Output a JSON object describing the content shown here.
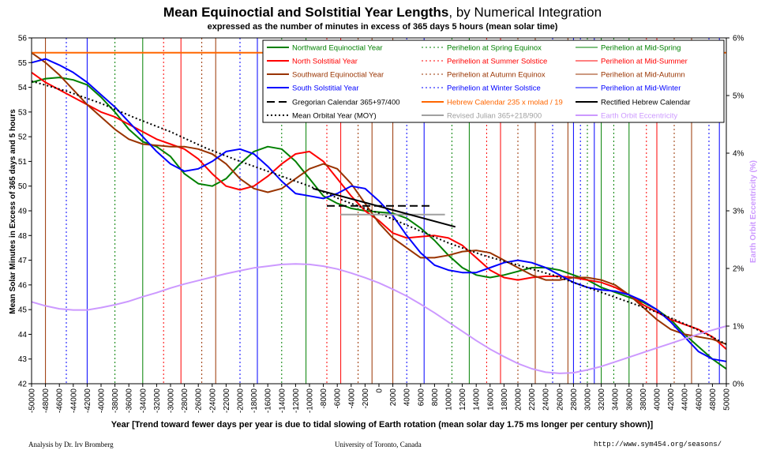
{
  "header": {
    "title_bold": "Mean Equinoctial and Solstitial Year Lengths",
    "title_rest": ", by Numerical Integration",
    "subtitle": "expressed as the number of minutes in excess of 365 days 5 hours (mean solar time)"
  },
  "footer": {
    "left": "Analysis by Dr. Irv Bromberg",
    "middle": "University of Toronto, Canada",
    "right": "http://www.sym454.org/seasons/"
  },
  "colors": {
    "green": "#008000",
    "red": "#ff0000",
    "brown": "#993300",
    "blue": "#0000ff",
    "black": "#000000",
    "orange": "#ff6600",
    "gray": "#a0a0a0",
    "violet": "#cc99ff"
  },
  "chart_data": {
    "type": "line",
    "xlabel": "Year [Trend toward fewer days per year is due to tidal slowing of Earth rotation (mean solar day 1.75 ms longer per century shown)]",
    "ylabel": "Mean Solar Minutes in Excess of 365 days and 5 hours",
    "y2label": "Earth Orbit Eccentricity (%)",
    "xlim": [
      -50000,
      50000
    ],
    "ylim": [
      42,
      56
    ],
    "y2lim": [
      0,
      6
    ],
    "x_ticks": [
      -50000,
      -48000,
      -46000,
      -44000,
      -42000,
      -40000,
      -38000,
      -36000,
      -34000,
      -32000,
      -30000,
      -28000,
      -26000,
      -24000,
      -22000,
      -20000,
      -18000,
      -16000,
      -14000,
      -12000,
      -10000,
      -8000,
      -6000,
      -4000,
      -2000,
      0,
      2000,
      4000,
      6000,
      8000,
      10000,
      12000,
      14000,
      16000,
      18000,
      20000,
      22000,
      24000,
      26000,
      28000,
      30000,
      32000,
      34000,
      36000,
      38000,
      40000,
      42000,
      44000,
      46000,
      48000,
      50000
    ],
    "y_ticks": [
      42,
      43,
      44,
      45,
      46,
      47,
      48,
      49,
      50,
      51,
      52,
      53,
      54,
      55,
      56
    ],
    "y2_ticks": [
      "0%",
      "1%",
      "2%",
      "3%",
      "4%",
      "5%",
      "6%"
    ],
    "grid": false,
    "legend_position": "top-right",
    "legend": [
      {
        "label": "Northward Equinoctial Year",
        "color": "green",
        "style": "solid",
        "width": 2
      },
      {
        "label": "Perihelion at Spring Equinox",
        "color": "green",
        "style": "dotted",
        "width": 1
      },
      {
        "label": "Perihelion at Mid-Spring",
        "color": "green",
        "style": "solid",
        "width": 1
      },
      {
        "label": "North Solstitial Year",
        "color": "red",
        "style": "solid",
        "width": 2
      },
      {
        "label": "Perihelion at Summer Solstice",
        "color": "red",
        "style": "dotted",
        "width": 1
      },
      {
        "label": "Perihelion at Mid-Summer",
        "color": "red",
        "style": "solid",
        "width": 1
      },
      {
        "label": "Southward Equinoctial Year",
        "color": "brown",
        "style": "solid",
        "width": 2
      },
      {
        "label": "Perihelion at Autumn Equinox",
        "color": "brown",
        "style": "dotted",
        "width": 1
      },
      {
        "label": "Perihelion at Mid-Autumn",
        "color": "brown",
        "style": "solid",
        "width": 1
      },
      {
        "label": "South Solstitial Year",
        "color": "blue",
        "style": "solid",
        "width": 2
      },
      {
        "label": "Perihelion at Winter Solstice",
        "color": "blue",
        "style": "dotted",
        "width": 1
      },
      {
        "label": "Perihelion at Mid-Winter",
        "color": "blue",
        "style": "solid",
        "width": 1
      },
      {
        "label": "Gregorian Calendar 365+97/400",
        "color": "black",
        "style": "dashed",
        "width": 2
      },
      {
        "label": "Hebrew Calendar 235 x molad / 19",
        "color": "orange",
        "style": "solid",
        "width": 2
      },
      {
        "label": "Rectified Hebrew Calendar",
        "color": "black",
        "style": "solid",
        "width": 2
      },
      {
        "label": "Mean Orbital Year (MOY)",
        "color": "black",
        "style": "dotted",
        "width": 2
      },
      {
        "label": "Revised Julian 365+218/900",
        "color": "gray",
        "style": "solid",
        "width": 2
      },
      {
        "label": "Earth Orbit Eccentricity",
        "color": "violet",
        "style": "solid",
        "width": 2
      }
    ],
    "perihelion_markers": [
      {
        "series": "Perihelion at Mid-Autumn",
        "color": "brown",
        "style": "solid",
        "x": [
          -48000,
          -23500,
          2000,
          27200
        ]
      },
      {
        "series": "Perihelion at Winter Solstice",
        "color": "blue",
        "style": "dotted",
        "x": [
          -45000,
          -20000,
          4000,
          29000
        ]
      },
      {
        "series": "Perihelion at Mid-Winter",
        "color": "blue",
        "style": "solid",
        "x": [
          -42000,
          -17500,
          6500,
          31000
        ]
      },
      {
        "series": "Perihelion at Spring Equinox",
        "color": "green",
        "style": "dotted",
        "x": [
          -38000,
          -14000,
          10500,
          33800
        ]
      },
      {
        "series": "Perihelion at Mid-Spring",
        "color": "green",
        "style": "solid",
        "x": [
          -34000,
          -10500,
          13000,
          36000
        ]
      },
      {
        "series": "Perihelion at Summer Solstice",
        "color": "red",
        "style": "dotted",
        "x": [
          -31000,
          -7500,
          15500,
          38500
        ]
      },
      {
        "series": "Perihelion at Mid-Summer",
        "color": "red",
        "style": "solid",
        "x": [
          -28500,
          -5500,
          17500,
          40000
        ]
      },
      {
        "series": "Perihelion at Autumn Equinox",
        "color": "brown",
        "style": "dotted",
        "x": [
          -25500,
          -3000,
          20000,
          42500
        ]
      },
      {
        "series": "Perihelion at Mid-Autumn",
        "color": "brown",
        "style": "solid",
        "x": [
          -1000,
          22500,
          45000
        ]
      },
      {
        "series": "Perihelion at Winter Solstice",
        "color": "blue",
        "style": "dotted",
        "x": [
          25000,
          47500
        ]
      },
      {
        "series": "Perihelion at Mid-Winter",
        "color": "blue",
        "style": "solid",
        "x": [
          28000,
          49000
        ]
      },
      {
        "series": "Perihelion at Spring Equinox",
        "color": "green",
        "style": "dotted",
        "x": [
          30000
        ]
      },
      {
        "series": "Perihelion at Mid-Spring",
        "color": "green",
        "style": "solid",
        "x": [
          32000
        ]
      }
    ],
    "series": [
      {
        "name": "Northward Equinoctial Year",
        "color": "green",
        "style": "solid",
        "width": 2,
        "x": [
          -50000,
          -48000,
          -46000,
          -44000,
          -42000,
          -40000,
          -38000,
          -36000,
          -34000,
          -32000,
          -30000,
          -28000,
          -26000,
          -24000,
          -22000,
          -20000,
          -18000,
          -16000,
          -14000,
          -12000,
          -10000,
          -8000,
          -6000,
          -4000,
          -2000,
          0,
          2000,
          4000,
          6000,
          8000,
          10000,
          12000,
          14000,
          16000,
          18000,
          20000,
          22000,
          24000,
          26000,
          28000,
          30000,
          32000,
          34000,
          36000,
          38000,
          40000,
          42000,
          44000,
          46000,
          48000,
          50000
        ],
        "y": [
          54.2,
          54.35,
          54.4,
          54.3,
          54.1,
          53.6,
          53.0,
          52.3,
          51.8,
          51.6,
          51.2,
          50.5,
          50.1,
          50.0,
          50.3,
          50.9,
          51.4,
          51.6,
          51.5,
          51.0,
          50.3,
          49.6,
          49.3,
          49.1,
          49.0,
          48.95,
          48.9,
          48.7,
          48.3,
          47.8,
          47.2,
          46.7,
          46.4,
          46.3,
          46.4,
          46.55,
          46.7,
          46.7,
          46.6,
          46.4,
          46.2,
          45.9,
          45.7,
          45.5,
          45.3,
          45.0,
          44.6,
          44.0,
          43.5,
          43.0,
          42.6
        ]
      },
      {
        "name": "North Solstitial Year",
        "color": "red",
        "style": "solid",
        "width": 2,
        "x": [
          -50000,
          -48000,
          -46000,
          -44000,
          -42000,
          -40000,
          -38000,
          -36000,
          -34000,
          -32000,
          -30000,
          -28000,
          -26000,
          -24000,
          -22000,
          -20000,
          -18000,
          -16000,
          -14000,
          -12000,
          -10000,
          -8000,
          -6000,
          -4000,
          -2000,
          0,
          2000,
          4000,
          6000,
          8000,
          10000,
          12000,
          14000,
          16000,
          18000,
          20000,
          22000,
          24000,
          26000,
          28000,
          30000,
          32000,
          34000,
          36000,
          38000,
          40000,
          42000,
          44000,
          46000,
          48000,
          50000
        ],
        "y": [
          54.6,
          54.2,
          53.9,
          53.6,
          53.3,
          53.0,
          52.8,
          52.5,
          52.2,
          51.9,
          51.7,
          51.5,
          51.1,
          50.5,
          50.0,
          49.85,
          50.0,
          50.4,
          50.9,
          51.3,
          51.4,
          51.0,
          50.3,
          49.6,
          49.0,
          48.6,
          48.1,
          47.9,
          47.95,
          48.0,
          47.9,
          47.6,
          47.1,
          46.6,
          46.3,
          46.2,
          46.3,
          46.35,
          46.35,
          46.3,
          46.2,
          46.1,
          45.9,
          45.6,
          45.2,
          44.9,
          44.6,
          44.4,
          44.2,
          43.9,
          43.4
        ]
      },
      {
        "name": "Southward Equinoctial Year",
        "color": "brown",
        "style": "solid",
        "width": 2,
        "x": [
          -50000,
          -48000,
          -46000,
          -44000,
          -42000,
          -40000,
          -38000,
          -36000,
          -34000,
          -32000,
          -30000,
          -28000,
          -26000,
          -24000,
          -22000,
          -20000,
          -18000,
          -16000,
          -14000,
          -12000,
          -10000,
          -8000,
          -6000,
          -4000,
          -2000,
          0,
          2000,
          4000,
          6000,
          8000,
          10000,
          12000,
          14000,
          16000,
          18000,
          20000,
          22000,
          24000,
          26000,
          28000,
          30000,
          32000,
          34000,
          36000,
          38000,
          40000,
          42000,
          44000,
          46000,
          48000,
          50000
        ],
        "y": [
          55.4,
          55.0,
          54.5,
          53.9,
          53.3,
          52.8,
          52.3,
          51.9,
          51.7,
          51.65,
          51.6,
          51.6,
          51.5,
          51.3,
          50.9,
          50.3,
          49.9,
          49.75,
          49.9,
          50.3,
          50.7,
          50.9,
          50.7,
          50.1,
          49.3,
          48.5,
          47.9,
          47.5,
          47.1,
          47.1,
          47.2,
          47.35,
          47.4,
          47.3,
          47.0,
          46.7,
          46.4,
          46.2,
          46.2,
          46.3,
          46.3,
          46.2,
          46.0,
          45.6,
          45.1,
          44.6,
          44.2,
          44.0,
          43.9,
          43.8,
          43.6
        ]
      },
      {
        "name": "South Solstitial Year",
        "color": "blue",
        "style": "solid",
        "width": 2,
        "x": [
          -50000,
          -48000,
          -46000,
          -44000,
          -42000,
          -40000,
          -38000,
          -36000,
          -34000,
          -32000,
          -30000,
          -28000,
          -26000,
          -24000,
          -22000,
          -20000,
          -18000,
          -16000,
          -14000,
          -12000,
          -10000,
          -8000,
          -6000,
          -4000,
          -2000,
          0,
          2000,
          4000,
          6000,
          8000,
          10000,
          12000,
          14000,
          16000,
          18000,
          20000,
          22000,
          24000,
          26000,
          28000,
          30000,
          32000,
          34000,
          36000,
          38000,
          40000,
          42000,
          44000,
          46000,
          48000,
          50000
        ],
        "y": [
          55.0,
          55.15,
          54.9,
          54.6,
          54.2,
          53.7,
          53.2,
          52.6,
          52.0,
          51.4,
          50.9,
          50.6,
          50.7,
          51.0,
          51.4,
          51.5,
          51.3,
          50.8,
          50.2,
          49.7,
          49.6,
          49.5,
          49.7,
          50.0,
          49.9,
          49.4,
          48.8,
          48.0,
          47.3,
          46.8,
          46.6,
          46.5,
          46.5,
          46.7,
          46.9,
          47.0,
          46.9,
          46.7,
          46.4,
          46.1,
          45.9,
          45.8,
          45.75,
          45.6,
          45.35,
          45.0,
          44.5,
          43.9,
          43.3,
          43.0,
          42.9
        ]
      },
      {
        "name": "Mean Orbital Year (MOY)",
        "color": "black",
        "style": "dotted",
        "width": 2,
        "x": [
          -50000,
          -45000,
          -40000,
          -35000,
          -30000,
          -25000,
          -20000,
          -15000,
          -10000,
          -5000,
          0,
          5000,
          10000,
          15000,
          20000,
          25000,
          30000,
          35000,
          40000,
          45000,
          50000
        ],
        "y": [
          54.25,
          53.85,
          53.35,
          52.75,
          52.2,
          51.55,
          51.0,
          50.5,
          50.0,
          49.4,
          48.9,
          48.3,
          47.7,
          47.2,
          46.8,
          46.4,
          45.9,
          45.4,
          44.9,
          44.3,
          43.6
        ]
      },
      {
        "name": "Earth Orbit Eccentricity",
        "color": "violet",
        "style": "solid",
        "width": 2,
        "axis": "y2",
        "x": [
          -50000,
          -48000,
          -46000,
          -44000,
          -42000,
          -40000,
          -38000,
          -36000,
          -34000,
          -32000,
          -30000,
          -28000,
          -26000,
          -24000,
          -22000,
          -20000,
          -18000,
          -16000,
          -14000,
          -12000,
          -10000,
          -8000,
          -6000,
          -4000,
          -2000,
          0,
          2000,
          4000,
          6000,
          8000,
          10000,
          12000,
          14000,
          16000,
          18000,
          20000,
          22000,
          24000,
          26000,
          28000,
          30000,
          32000,
          34000,
          36000,
          38000,
          40000,
          42000,
          44000,
          46000,
          48000,
          50000
        ],
        "y": [
          1.42,
          1.35,
          1.3,
          1.28,
          1.28,
          1.32,
          1.37,
          1.43,
          1.51,
          1.58,
          1.66,
          1.73,
          1.79,
          1.85,
          1.91,
          1.96,
          2.01,
          2.04,
          2.07,
          2.08,
          2.07,
          2.04,
          1.99,
          1.92,
          1.84,
          1.75,
          1.64,
          1.52,
          1.38,
          1.23,
          1.07,
          0.91,
          0.75,
          0.6,
          0.47,
          0.35,
          0.26,
          0.2,
          0.18,
          0.19,
          0.24,
          0.3,
          0.38,
          0.46,
          0.54,
          0.62,
          0.7,
          0.78,
          0.86,
          0.93,
          1.0
        ]
      },
      {
        "name": "Hebrew Calendar 235 x molad / 19",
        "color": "orange",
        "style": "solid",
        "width": 2,
        "x": [
          -50000,
          50000
        ],
        "y": [
          55.4,
          55.4
        ]
      },
      {
        "name": "Gregorian Calendar 365+97/400",
        "color": "black",
        "style": "dashed",
        "width": 2,
        "x": [
          -7500,
          7500
        ],
        "y": [
          49.2,
          49.2
        ]
      },
      {
        "name": "Revised Julian 365+218/900",
        "color": "gray",
        "style": "solid",
        "width": 2,
        "x": [
          -5500,
          9500
        ],
        "y": [
          48.85,
          48.85
        ]
      },
      {
        "name": "Rectified Hebrew Calendar",
        "color": "black",
        "style": "solid",
        "width": 2,
        "x": [
          -9500,
          11000
        ],
        "y": [
          49.9,
          48.35
        ]
      }
    ]
  }
}
